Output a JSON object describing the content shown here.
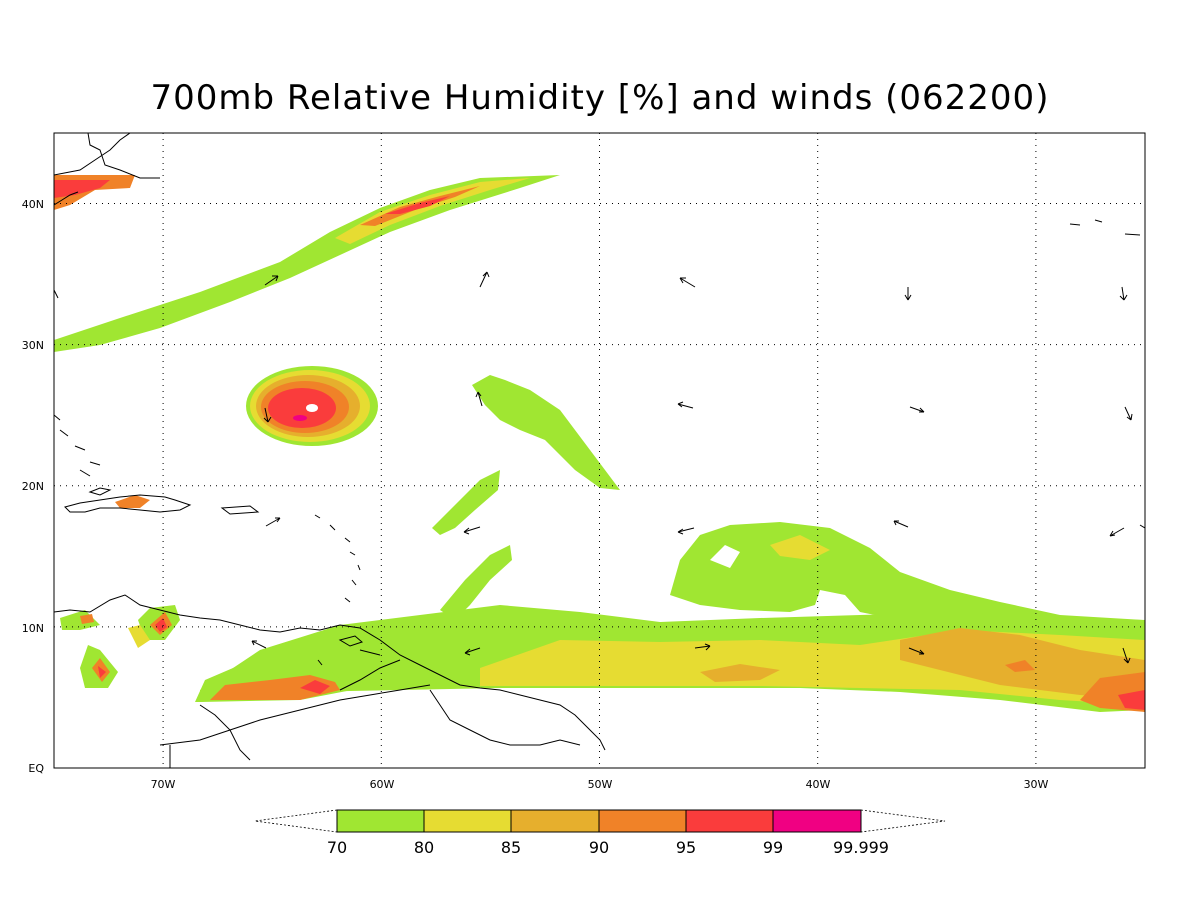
{
  "title": "700mb Relative Humidity [%] and winds (062200)",
  "colors": {
    "c70": "#a0e632",
    "c80": "#e6dc32",
    "c85": "#e6af2d",
    "c90": "#f08228",
    "c95": "#fa3c3c",
    "c99": "#f00082",
    "land": "#000000",
    "grid": "#000000"
  },
  "map": {
    "lon_range": [
      -75,
      -25
    ],
    "lat_range": [
      0,
      45
    ],
    "lon_ticks": [
      "70W",
      "60W",
      "50W",
      "40W",
      "30W"
    ],
    "lat_ticks": [
      "EQ",
      "10N",
      "20N",
      "30N",
      "40N"
    ],
    "grid": "dotted"
  },
  "colorbar": {
    "levels": [
      "70",
      "80",
      "85",
      "90",
      "95",
      "99",
      "99.999"
    ]
  }
}
